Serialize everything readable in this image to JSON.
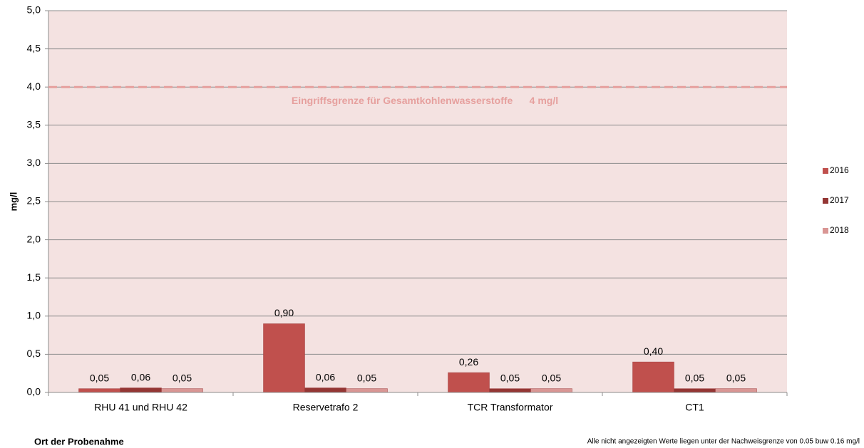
{
  "chart_data": {
    "type": "bar",
    "categories": [
      "RHU 41 und RHU 42",
      "Reservetrafo 2",
      "TCR Transformator",
      "CT1"
    ],
    "series": [
      {
        "name": "2016",
        "color": "#c0504d",
        "values": [
          0.05,
          0.9,
          0.26,
          0.4
        ],
        "value_labels": [
          "0,05",
          "0,90",
          "0,26",
          "0,40"
        ]
      },
      {
        "name": "2017",
        "color": "#943634",
        "values": [
          0.06,
          0.06,
          0.05,
          0.05
        ],
        "value_labels": [
          "0,06",
          "0,06",
          "0,05",
          "0,05"
        ]
      },
      {
        "name": "2018",
        "color": "#d99694",
        "values": [
          0.05,
          0.05,
          0.05,
          0.05
        ],
        "value_labels": [
          "0,05",
          "0,05",
          "0,05",
          "0,05"
        ]
      }
    ],
    "ylim": [
      0,
      5
    ],
    "yticks": [
      {
        "value": 0,
        "label": "0,0"
      },
      {
        "value": 0.5,
        "label": "0,5"
      },
      {
        "value": 1,
        "label": "1,0"
      },
      {
        "value": 1.5,
        "label": "1,5"
      },
      {
        "value": 2,
        "label": "2,0"
      },
      {
        "value": 2.5,
        "label": "2,5"
      },
      {
        "value": 3,
        "label": "3,0"
      },
      {
        "value": 3.5,
        "label": "3,5"
      },
      {
        "value": 4,
        "label": "4,0"
      },
      {
        "value": 4.5,
        "label": "4,5"
      },
      {
        "value": 5,
        "label": "5,0"
      }
    ],
    "y_label": "mg/l",
    "x_label": "Ort der Probenahme",
    "footnote": "Alle nicht angezeigten Werte liegen unter der Nachweisgrenze von 0.05 buw 0.16 mg/l",
    "reference_line": {
      "value": 4,
      "label": "Eingriffsgrenze für Gesamtkohlenwasserstoffe      4 mg/l",
      "color": "#e6a09e"
    },
    "grid": true,
    "legend": "right"
  }
}
